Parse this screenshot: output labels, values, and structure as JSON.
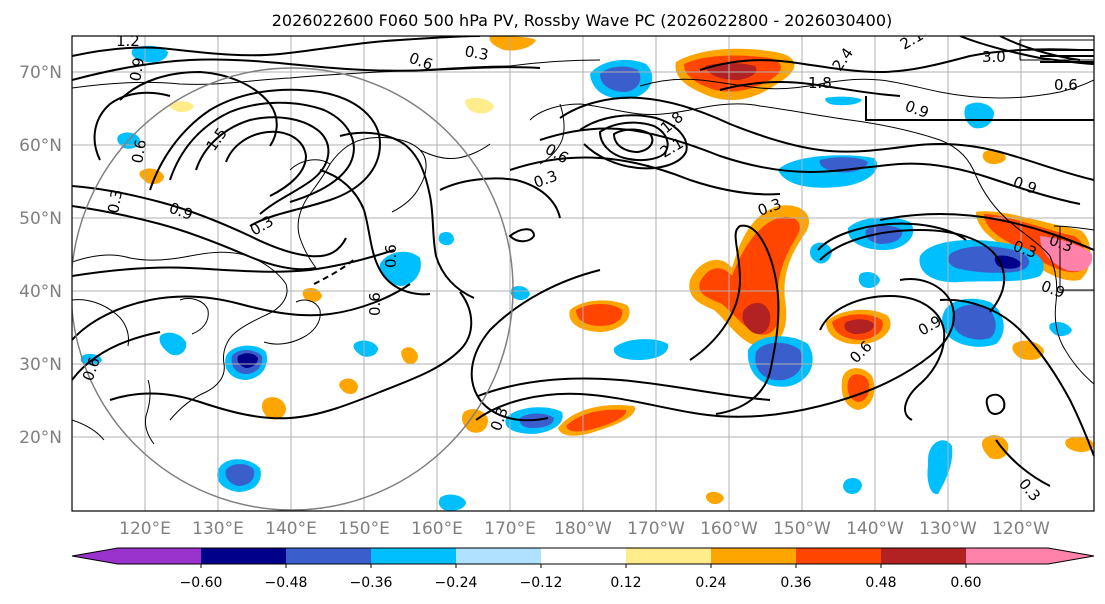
{
  "title": "2026022600 F060 500 hPa PV, Rossby Wave PC (2026022800 - 2026030400)",
  "lat_labels": [
    "70°N",
    "60°N",
    "50°N",
    "40°N",
    "30°N",
    "20°N"
  ],
  "lon_labels": [
    "120°E",
    "130°E",
    "140°E",
    "150°E",
    "160°E",
    "170°E",
    "180°W",
    "170°W",
    "160°W",
    "150°W",
    "140°W",
    "130°W",
    "120°W"
  ],
  "colorbar": {
    "colors": [
      "#9a32cd",
      "#00008b",
      "#3a5fcd",
      "#00bfff",
      "#b0e2ff",
      "#ffffff",
      "#ffec8b",
      "#ffa500",
      "#ff4500",
      "#b22222",
      "#ff82ab"
    ],
    "ticks": [
      "−0.60",
      "−0.48",
      "−0.36",
      "−0.24",
      "−0.12",
      "0.12",
      "0.24",
      "0.36",
      "0.48",
      "0.60"
    ]
  },
  "contour_labels": [
    "1.2",
    "0.9",
    "0.3",
    "0.6",
    "1.5",
    "0.3",
    "0.9",
    "0.6",
    "0.3",
    "0.6",
    "0.6",
    "1.8",
    "2.1",
    "0.3",
    "0.3",
    "2.4",
    "1.8",
    "3.0",
    "2.1",
    "0.9",
    "0.9",
    "0.3",
    "0.3",
    "0.9",
    "0.6",
    "0.6",
    "0.3",
    "0.6",
    "0.3",
    "0.6",
    "0.9"
  ],
  "shaded_anomalies": [
    {
      "lon": 176,
      "lat": 72,
      "value": 0.36
    },
    {
      "lon": 206,
      "lat": 69,
      "value": 0.52
    },
    {
      "lon": 217,
      "lat": 54,
      "value": 0.4
    },
    {
      "lon": 205,
      "lat": 36,
      "value": 0.5
    },
    {
      "lon": 216,
      "lat": 35,
      "value": 0.48
    },
    {
      "lon": 230,
      "lat": 34,
      "value": 0.52
    },
    {
      "lon": 236,
      "lat": 45,
      "value": 0.62
    },
    {
      "lon": 186,
      "lat": 33,
      "value": 0.4
    },
    {
      "lon": 188,
      "lat": 22,
      "value": 0.44
    },
    {
      "lon": 228,
      "lat": 26,
      "value": 0.4
    },
    {
      "lon": 195,
      "lat": 67,
      "value": -0.4
    },
    {
      "lon": 222,
      "lat": 57,
      "value": -0.32
    },
    {
      "lon": 231,
      "lat": 46,
      "value": -0.46
    },
    {
      "lon": 246,
      "lat": 44,
      "value": -0.45
    },
    {
      "lon": 252,
      "lat": 36,
      "value": -0.42
    },
    {
      "lon": 221,
      "lat": 28,
      "value": -0.4
    },
    {
      "lon": 142,
      "lat": 30,
      "value": -0.52
    },
    {
      "lon": 142,
      "lat": 15,
      "value": -0.4
    },
    {
      "lon": 181,
      "lat": 21,
      "value": -0.36
    },
    {
      "lon": 178,
      "lat": 40,
      "value": -0.24
    },
    {
      "lon": 156,
      "lat": 43,
      "value": -0.28
    },
    {
      "lon": 193,
      "lat": 31,
      "value": -0.24
    },
    {
      "lon": 231,
      "lat": 40,
      "value": -0.3
    },
    {
      "lon": 246,
      "lat": 20,
      "value": -0.34
    },
    {
      "lon": 130,
      "lat": 59,
      "value": -0.24
    }
  ]
}
